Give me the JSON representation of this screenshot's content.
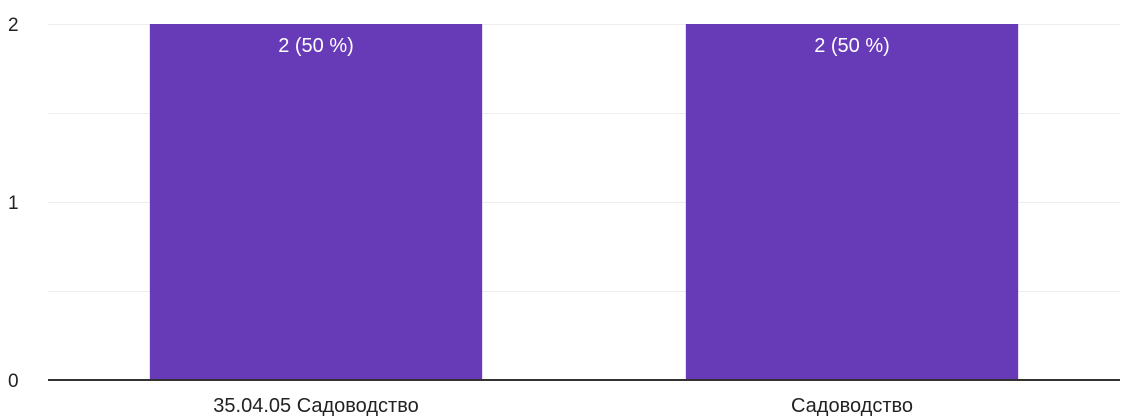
{
  "chart_data": {
    "type": "bar",
    "categories": [
      "35.04.05 Садоводство",
      "Садоводство"
    ],
    "values": [
      2,
      2
    ],
    "data_labels": [
      "2 (50 %)",
      "2 (50 %)"
    ],
    "ylim": [
      0,
      2
    ],
    "y_ticks": [
      "0",
      "1",
      "2"
    ],
    "grid": true,
    "legend": "none",
    "colors": {
      "bar": "#673ab7",
      "gridline": "#eeeeee",
      "axis": "#333333",
      "text": "#222222"
    }
  }
}
